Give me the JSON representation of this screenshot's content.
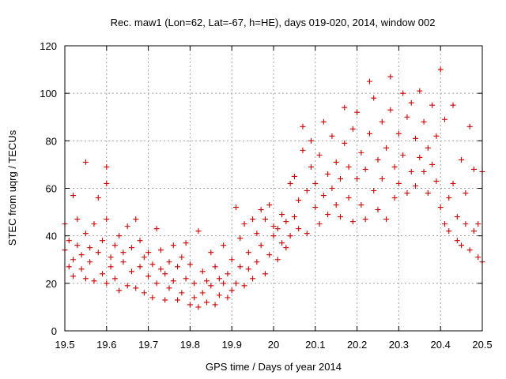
{
  "chart_data": {
    "type": "scatter",
    "title": "Rec. maw1 (Lon=62, Lat=-67, h=HE), days 019-020, 2014, window 002",
    "xlabel": "GPS time / Days of year 2014",
    "ylabel": "STEC from uqrg / TECUs",
    "xlim": [
      19.5,
      20.5
    ],
    "ylim": [
      0,
      120
    ],
    "x_ticks": [
      19.5,
      19.6,
      19.7,
      19.8,
      19.9,
      20,
      20.1,
      20.2,
      20.3,
      20.4,
      20.5
    ],
    "x_tick_labels": [
      "19.5",
      "19.6",
      "19.7",
      "19.8",
      "19.9",
      "20",
      "20.1",
      "20.2",
      "20.3",
      "20.4",
      "20.5"
    ],
    "y_ticks": [
      0,
      20,
      40,
      60,
      80,
      100,
      120
    ],
    "y_tick_labels": [
      "0",
      "20",
      "40",
      "60",
      "80",
      "100",
      "120"
    ],
    "grid": true,
    "marker": "+",
    "color": "#cc0000",
    "series": [
      {
        "points": [
          [
            19.5,
            34
          ],
          [
            19.5,
            45
          ],
          [
            19.51,
            27
          ],
          [
            19.51,
            38
          ],
          [
            19.52,
            30
          ],
          [
            19.52,
            57
          ],
          [
            19.52,
            23
          ],
          [
            19.53,
            36
          ],
          [
            19.53,
            47
          ],
          [
            19.54,
            26
          ],
          [
            19.54,
            32
          ],
          [
            19.55,
            71
          ],
          [
            19.55,
            22
          ],
          [
            19.55,
            41
          ],
          [
            19.56,
            29
          ],
          [
            19.56,
            35
          ],
          [
            19.57,
            21
          ],
          [
            19.57,
            45
          ],
          [
            19.58,
            33
          ],
          [
            19.58,
            56
          ],
          [
            19.59,
            24
          ],
          [
            19.59,
            38
          ],
          [
            19.6,
            20
          ],
          [
            19.6,
            47
          ],
          [
            19.6,
            69
          ],
          [
            19.6,
            62
          ],
          [
            19.61,
            31
          ],
          [
            19.61,
            27
          ],
          [
            19.62,
            36
          ],
          [
            19.62,
            22
          ],
          [
            19.63,
            17
          ],
          [
            19.63,
            40
          ],
          [
            19.64,
            29
          ],
          [
            19.64,
            33
          ],
          [
            19.65,
            19
          ],
          [
            19.65,
            44
          ],
          [
            19.66,
            25
          ],
          [
            19.66,
            35
          ],
          [
            19.67,
            18
          ],
          [
            19.67,
            47
          ],
          [
            19.68,
            27
          ],
          [
            19.68,
            38
          ],
          [
            19.69,
            16
          ],
          [
            19.69,
            31
          ],
          [
            19.7,
            23
          ],
          [
            19.7,
            33
          ],
          [
            19.71,
            14
          ],
          [
            19.71,
            28
          ],
          [
            19.72,
            20
          ],
          [
            19.72,
            43
          ],
          [
            19.73,
            26
          ],
          [
            19.73,
            34
          ],
          [
            19.74,
            13
          ],
          [
            19.74,
            24
          ],
          [
            19.75,
            18
          ],
          [
            19.75,
            29
          ],
          [
            19.76,
            21
          ],
          [
            19.76,
            36
          ],
          [
            19.77,
            13
          ],
          [
            19.77,
            27
          ],
          [
            19.78,
            16
          ],
          [
            19.78,
            31
          ],
          [
            19.79,
            22
          ],
          [
            19.79,
            37
          ],
          [
            19.8,
            11
          ],
          [
            19.8,
            28
          ],
          [
            19.81,
            14
          ],
          [
            19.81,
            20
          ],
          [
            19.82,
            10
          ],
          [
            19.82,
            42
          ],
          [
            19.83,
            16
          ],
          [
            19.83,
            25
          ],
          [
            19.84,
            12
          ],
          [
            19.84,
            21
          ],
          [
            19.85,
            19
          ],
          [
            19.85,
            33
          ],
          [
            19.86,
            11
          ],
          [
            19.86,
            27
          ],
          [
            19.87,
            15
          ],
          [
            19.87,
            22
          ],
          [
            19.88,
            20
          ],
          [
            19.88,
            36
          ],
          [
            19.89,
            14
          ],
          [
            19.89,
            24
          ],
          [
            19.9,
            17
          ],
          [
            19.9,
            30
          ],
          [
            19.91,
            52
          ],
          [
            19.91,
            20
          ],
          [
            19.92,
            27
          ],
          [
            19.92,
            39
          ],
          [
            19.93,
            19
          ],
          [
            19.93,
            45
          ],
          [
            19.94,
            26
          ],
          [
            19.94,
            33
          ],
          [
            19.95,
            47
          ],
          [
            19.95,
            22
          ],
          [
            19.96,
            41
          ],
          [
            19.96,
            29
          ],
          [
            19.97,
            51
          ],
          [
            19.97,
            36
          ],
          [
            19.98,
            47
          ],
          [
            19.98,
            24
          ],
          [
            19.99,
            53
          ],
          [
            19.99,
            32
          ],
          [
            20.0,
            44
          ],
          [
            20.0,
            40
          ],
          [
            20.01,
            30
          ],
          [
            20.01,
            43
          ],
          [
            20.02,
            37
          ],
          [
            20.02,
            49
          ],
          [
            20.03,
            46
          ],
          [
            20.03,
            35
          ],
          [
            20.04,
            62
          ],
          [
            20.04,
            40
          ],
          [
            20.05,
            48
          ],
          [
            20.05,
            65
          ],
          [
            20.06,
            55
          ],
          [
            20.06,
            43
          ],
          [
            20.07,
            86
          ],
          [
            20.07,
            76
          ],
          [
            20.08,
            59
          ],
          [
            20.08,
            41
          ],
          [
            20.09,
            69
          ],
          [
            20.09,
            80
          ],
          [
            20.1,
            62
          ],
          [
            20.1,
            52
          ],
          [
            20.11,
            45
          ],
          [
            20.11,
            74
          ],
          [
            20.12,
            57
          ],
          [
            20.12,
            88
          ],
          [
            20.13,
            66
          ],
          [
            20.13,
            49
          ],
          [
            20.14,
            60
          ],
          [
            20.14,
            82
          ],
          [
            20.15,
            53
          ],
          [
            20.15,
            71
          ],
          [
            20.16,
            64
          ],
          [
            20.16,
            48
          ],
          [
            20.17,
            94
          ],
          [
            20.17,
            79
          ],
          [
            20.18,
            69
          ],
          [
            20.18,
            56
          ],
          [
            20.19,
            85
          ],
          [
            20.19,
            46
          ],
          [
            20.2,
            92
          ],
          [
            20.2,
            64
          ],
          [
            20.21,
            53
          ],
          [
            20.21,
            75
          ],
          [
            20.22,
            68
          ],
          [
            20.22,
            47
          ],
          [
            20.23,
            105
          ],
          [
            20.23,
            83
          ],
          [
            20.24,
            59
          ],
          [
            20.24,
            98
          ],
          [
            20.25,
            72
          ],
          [
            20.25,
            51
          ],
          [
            20.26,
            88
          ],
          [
            20.26,
            64
          ],
          [
            20.27,
            47
          ],
          [
            20.27,
            77
          ],
          [
            20.28,
            107
          ],
          [
            20.28,
            93
          ],
          [
            20.29,
            56
          ],
          [
            20.29,
            69
          ],
          [
            20.3,
            83
          ],
          [
            20.3,
            62
          ],
          [
            20.31,
            100
          ],
          [
            20.31,
            74
          ],
          [
            20.32,
            90
          ],
          [
            20.32,
            58
          ],
          [
            20.33,
            67
          ],
          [
            20.33,
            96
          ],
          [
            20.34,
            81
          ],
          [
            20.34,
            61
          ],
          [
            20.35,
            73
          ],
          [
            20.35,
            101
          ],
          [
            20.36,
            88
          ],
          [
            20.36,
            67
          ],
          [
            20.37,
            77
          ],
          [
            20.37,
            58
          ],
          [
            20.38,
            95
          ],
          [
            20.38,
            70
          ],
          [
            20.39,
            63
          ],
          [
            20.39,
            82
          ],
          [
            20.4,
            110
          ],
          [
            20.4,
            52
          ],
          [
            20.41,
            89
          ],
          [
            20.41,
            45
          ],
          [
            20.42,
            56
          ],
          [
            20.42,
            42
          ],
          [
            20.43,
            95
          ],
          [
            20.43,
            62
          ],
          [
            20.44,
            38
          ],
          [
            20.44,
            48
          ],
          [
            20.45,
            72
          ],
          [
            20.45,
            36
          ],
          [
            20.46,
            45
          ],
          [
            20.46,
            58
          ],
          [
            20.47,
            86
          ],
          [
            20.47,
            34
          ],
          [
            20.48,
            42
          ],
          [
            20.48,
            68
          ],
          [
            20.49,
            31
          ],
          [
            20.49,
            45
          ],
          [
            20.5,
            67
          ],
          [
            20.5,
            29
          ]
        ]
      }
    ]
  }
}
